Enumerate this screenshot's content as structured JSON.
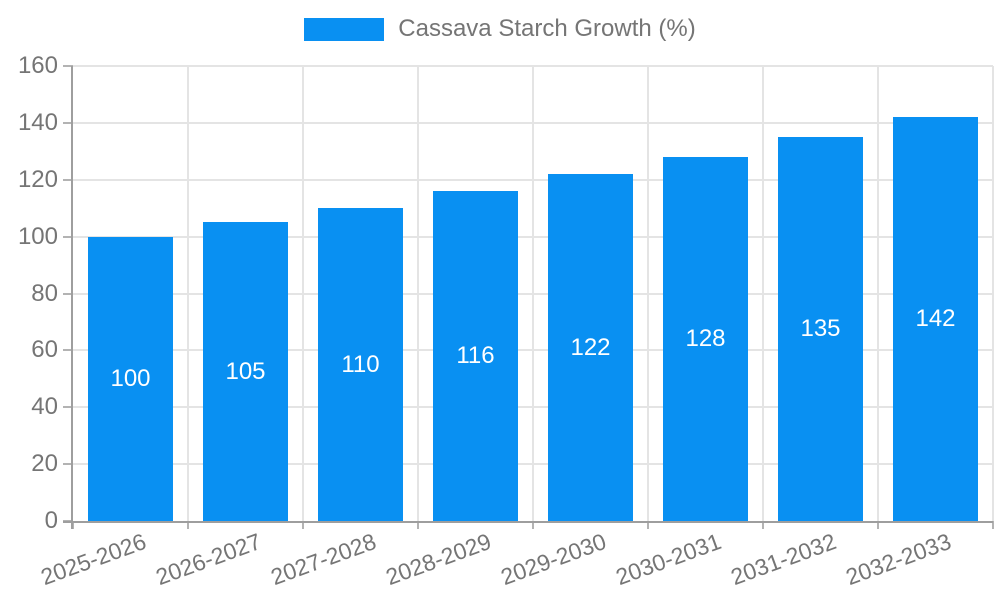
{
  "legend": {
    "label": "Cassava Starch Growth (%)"
  },
  "chart_data": {
    "type": "bar",
    "title": "Cassava Starch Growth (%)",
    "categories": [
      "2025-2026",
      "2026-2027",
      "2027-2028",
      "2028-2029",
      "2029-2030",
      "2030-2031",
      "2031-2032",
      "2032-2033"
    ],
    "values": [
      100,
      105,
      110,
      116,
      122,
      128,
      135,
      142
    ],
    "xlabel": "",
    "ylabel": "",
    "ylim": [
      0,
      160
    ],
    "ytick_step": 20,
    "grid": true,
    "legend_position": "top",
    "bar_labels_visible": true,
    "colors": {
      "bar": "#0990f2",
      "axis": "#9e9e9e",
      "grid": "#e4e4e4",
      "tick": "#b3b3b3",
      "text": "#757575",
      "bar_label": "#ffffff",
      "background": "#ffffff"
    }
  }
}
